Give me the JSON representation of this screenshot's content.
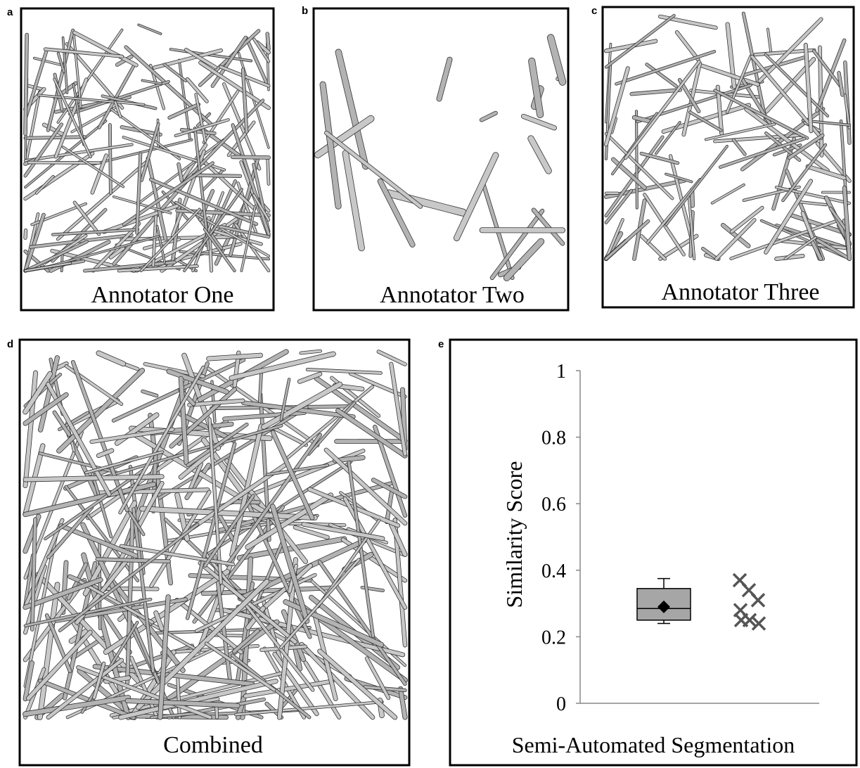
{
  "panels": [
    {
      "letter": "a",
      "caption": "Annotator One"
    },
    {
      "letter": "b",
      "caption": "Annotator Two"
    },
    {
      "letter": "c",
      "caption": "Annotator Three"
    },
    {
      "letter": "d",
      "caption": "Combined"
    }
  ],
  "chart_data": {
    "type": "box",
    "letter": "e",
    "ylabel": "Similarity Score",
    "xlabel": "Semi-Automated Segmentation",
    "ylim": [
      0,
      1
    ],
    "yticks": [
      0,
      0.2,
      0.4,
      0.6,
      0.8,
      1
    ],
    "color": "#a6a6a6",
    "box": {
      "whisker_low": 0.24,
      "q1": 0.25,
      "median": 0.285,
      "q3": 0.345,
      "whisker_high": 0.375,
      "mean": 0.29
    },
    "points": [
      0.37,
      0.34,
      0.31,
      0.28,
      0.25,
      0.24,
      0.25
    ]
  }
}
